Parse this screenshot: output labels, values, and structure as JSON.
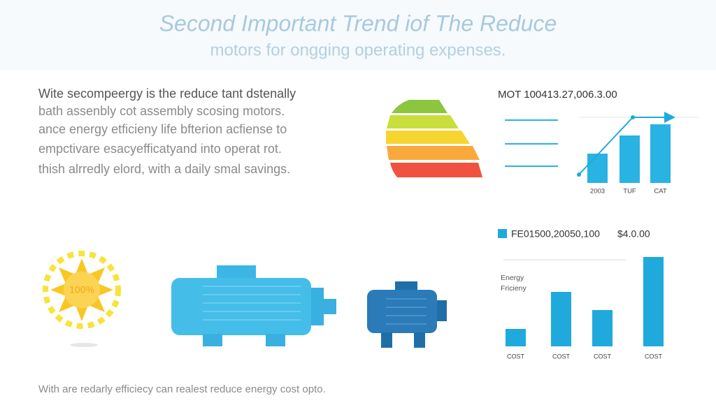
{
  "header": {
    "title": "Second Important Trend iof The Reduce",
    "subtitle": "motors for ongging operating expenses."
  },
  "body": {
    "paragraph": [
      "Wite secompeergy is the reduce tant dstenally",
      "bath assenbly cot assembly scosing motors.",
      "ance energy etficieny life bfterion acfiense to",
      "empctivare esacyefficatyand into operat rot.",
      "thish alrredly elord, with a daily smal savings."
    ]
  },
  "sun_label": "100%",
  "charts": [
    {
      "type": "bar",
      "title": "MOT 100413.27,006.3.00",
      "categories": [
        "2003",
        "TUF",
        "CAT"
      ],
      "values": [
        42,
        68,
        84
      ],
      "color": "#29b3e3"
    },
    {
      "type": "bar",
      "legend": "FE01500,20050,100",
      "value_label": "$4.0.00",
      "axis_label": [
        "Energy",
        "Fricieny"
      ],
      "categories": [
        "COST",
        "COST",
        "COST",
        "COST"
      ],
      "values": [
        25,
        78,
        52,
        128
      ],
      "color": "#1fa9dd"
    }
  ],
  "footer": "With are redarly efficiecy can realest reduce energy cost opto."
}
